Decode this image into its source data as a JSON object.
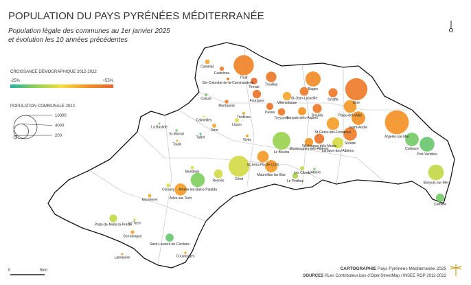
{
  "header": {
    "title": "POPULATION DU PAYS PYRÉNÉES MÉDITERRANÉE",
    "subtitle": [
      "Population légale des communes au 1er janvier 2025",
      "et évolution les 10 années précédentes"
    ]
  },
  "growth_legend": {
    "title": "CROISSANCE DÉMOGRAPHIQUE 2012-2022",
    "min": -25,
    "max": 55,
    "min_label": "-25%",
    "max_label": "+55%",
    "colors": [
      "#1fb3a6",
      "#8fd14f",
      "#f7df3b",
      "#f39021",
      "#e8662a"
    ]
  },
  "size_legend": {
    "title": "POPULATION COMMUNALE 2022",
    "values": [
      10000,
      4000,
      200
    ]
  },
  "communes": [
    {
      "name": "Thuir",
      "population": 7500,
      "growth": 42
    },
    {
      "name": "Céret",
      "population": 7900,
      "growth": 8
    },
    {
      "name": "Elne",
      "population": 9000,
      "growth": 46
    },
    {
      "name": "Argelès-sur-Mer",
      "population": 10500,
      "growth": 35
    },
    {
      "name": "Port-Vendres",
      "population": 4000,
      "growth": -12
    },
    {
      "name": "Collioure",
      "population": 3400,
      "growth": -10
    },
    {
      "name": "Banyuls-sur-Mer",
      "population": 4500,
      "growth": 5
    },
    {
      "name": "Cerbère",
      "population": 1300,
      "growth": -10
    },
    {
      "name": "Le Boulou",
      "population": 5800,
      "growth": -3
    },
    {
      "name": "Amélie-les-Bains-Palalda",
      "population": 3700,
      "growth": -8
    },
    {
      "name": "Arles-sur-Tech",
      "population": 2700,
      "growth": 32
    },
    {
      "name": "Bages",
      "population": 4200,
      "growth": 38
    },
    {
      "name": "Saint-André",
      "population": 3400,
      "growth": 35
    },
    {
      "name": "Palau-del-Vidre",
      "population": 3000,
      "growth": 33
    },
    {
      "name": "Sorède",
      "population": 3300,
      "growth": 45
    },
    {
      "name": "Laroque-des-Albères",
      "population": 2200,
      "growth": 8
    },
    {
      "name": "St-Génis-des-Fontaines",
      "population": 2900,
      "growth": 32
    },
    {
      "name": "Brouilla",
      "population": 1500,
      "growth": 48
    },
    {
      "name": "Ortaffa",
      "population": 1500,
      "growth": 48
    },
    {
      "name": "Trouillas",
      "population": 2000,
      "growth": 47
    },
    {
      "name": "Terrats",
      "population": 800,
      "growth": 52
    },
    {
      "name": "Fourques",
      "population": 1300,
      "growth": 50
    },
    {
      "name": "Villemolaque",
      "population": 1300,
      "growth": 30
    },
    {
      "name": "St-Jean-Lasseille",
      "population": 1400,
      "growth": 46
    },
    {
      "name": "Passa",
      "population": 900,
      "growth": 50
    },
    {
      "name": "Tresserre",
      "population": 1000,
      "growth": 47
    },
    {
      "name": "Banyuls-dels-Aspres",
      "population": 1200,
      "growth": 35
    },
    {
      "name": "Montesquieu-des-Albères",
      "population": 1300,
      "growth": 34
    },
    {
      "name": "Villelongue-dels-Monts",
      "population": 1800,
      "growth": 50
    },
    {
      "name": "St-Jean-Pla-de-Corts",
      "population": 2400,
      "growth": 33
    },
    {
      "name": "Maureillas-las-Illas",
      "population": 2800,
      "growth": 33
    },
    {
      "name": "Les Cluses",
      "population": 300,
      "growth": 5
    },
    {
      "name": "Le Perthus",
      "population": 600,
      "growth": 0
    },
    {
      "name": "L'Albère",
      "population": 100,
      "growth": -10
    },
    {
      "name": "Reynès",
      "population": 1400,
      "growth": 8
    },
    {
      "name": "Montbolo",
      "population": 200,
      "growth": 10
    },
    {
      "name": "Corsavy",
      "population": 250,
      "growth": 10
    },
    {
      "name": "Montferrer",
      "population": 200,
      "growth": 30
    },
    {
      "name": "Le Tech",
      "population": 100,
      "growth": 5
    },
    {
      "name": "Prats-de-Mollo-la-Preste",
      "population": 1100,
      "growth": 5
    },
    {
      "name": "Serralongue",
      "population": 250,
      "growth": 30
    },
    {
      "name": "Saint-Laurent-de-Cerdans",
      "population": 1200,
      "growth": -12
    },
    {
      "name": "Coustouges",
      "population": 100,
      "growth": 30
    },
    {
      "name": "Lamanère",
      "population": 50,
      "growth": 35
    },
    {
      "name": "Taulis",
      "population": 30,
      "growth": 30
    },
    {
      "name": "St-Marsal",
      "population": 100,
      "growth": -12
    },
    {
      "name": "La Bastide",
      "population": 50,
      "growth": -12
    },
    {
      "name": "Taillet",
      "population": 50,
      "growth": -20
    },
    {
      "name": "Calmeilles",
      "population": 50,
      "growth": 10
    },
    {
      "name": "Oms",
      "population": 300,
      "growth": 30
    },
    {
      "name": "Llauro",
      "population": 300,
      "growth": 10
    },
    {
      "name": "Tordères",
      "population": 150,
      "growth": 30
    },
    {
      "name": "Vivès",
      "population": 150,
      "growth": 30
    },
    {
      "name": "Montauriol",
      "population": 250,
      "growth": 45
    },
    {
      "name": "Caixas",
      "population": 150,
      "growth": -10
    },
    {
      "name": "Camélas",
      "population": 400,
      "growth": 30
    },
    {
      "name": "Castelnou",
      "population": 350,
      "growth": 45
    },
    {
      "name": "Ste-Colombe-de-la-Commanderie",
      "population": 150,
      "growth": 45
    }
  ],
  "scale_bar": {
    "start": "0",
    "end": "5km"
  },
  "footer": {
    "credit_label": "CARTOGRAPHIE",
    "credit": "Pays Pyrénées Méditerranée 2025",
    "sources_label": "SOURCES",
    "sources": "©Les Contributeur.ices d'OpenStreetMap / INSEE RGP 2012-2022"
  }
}
